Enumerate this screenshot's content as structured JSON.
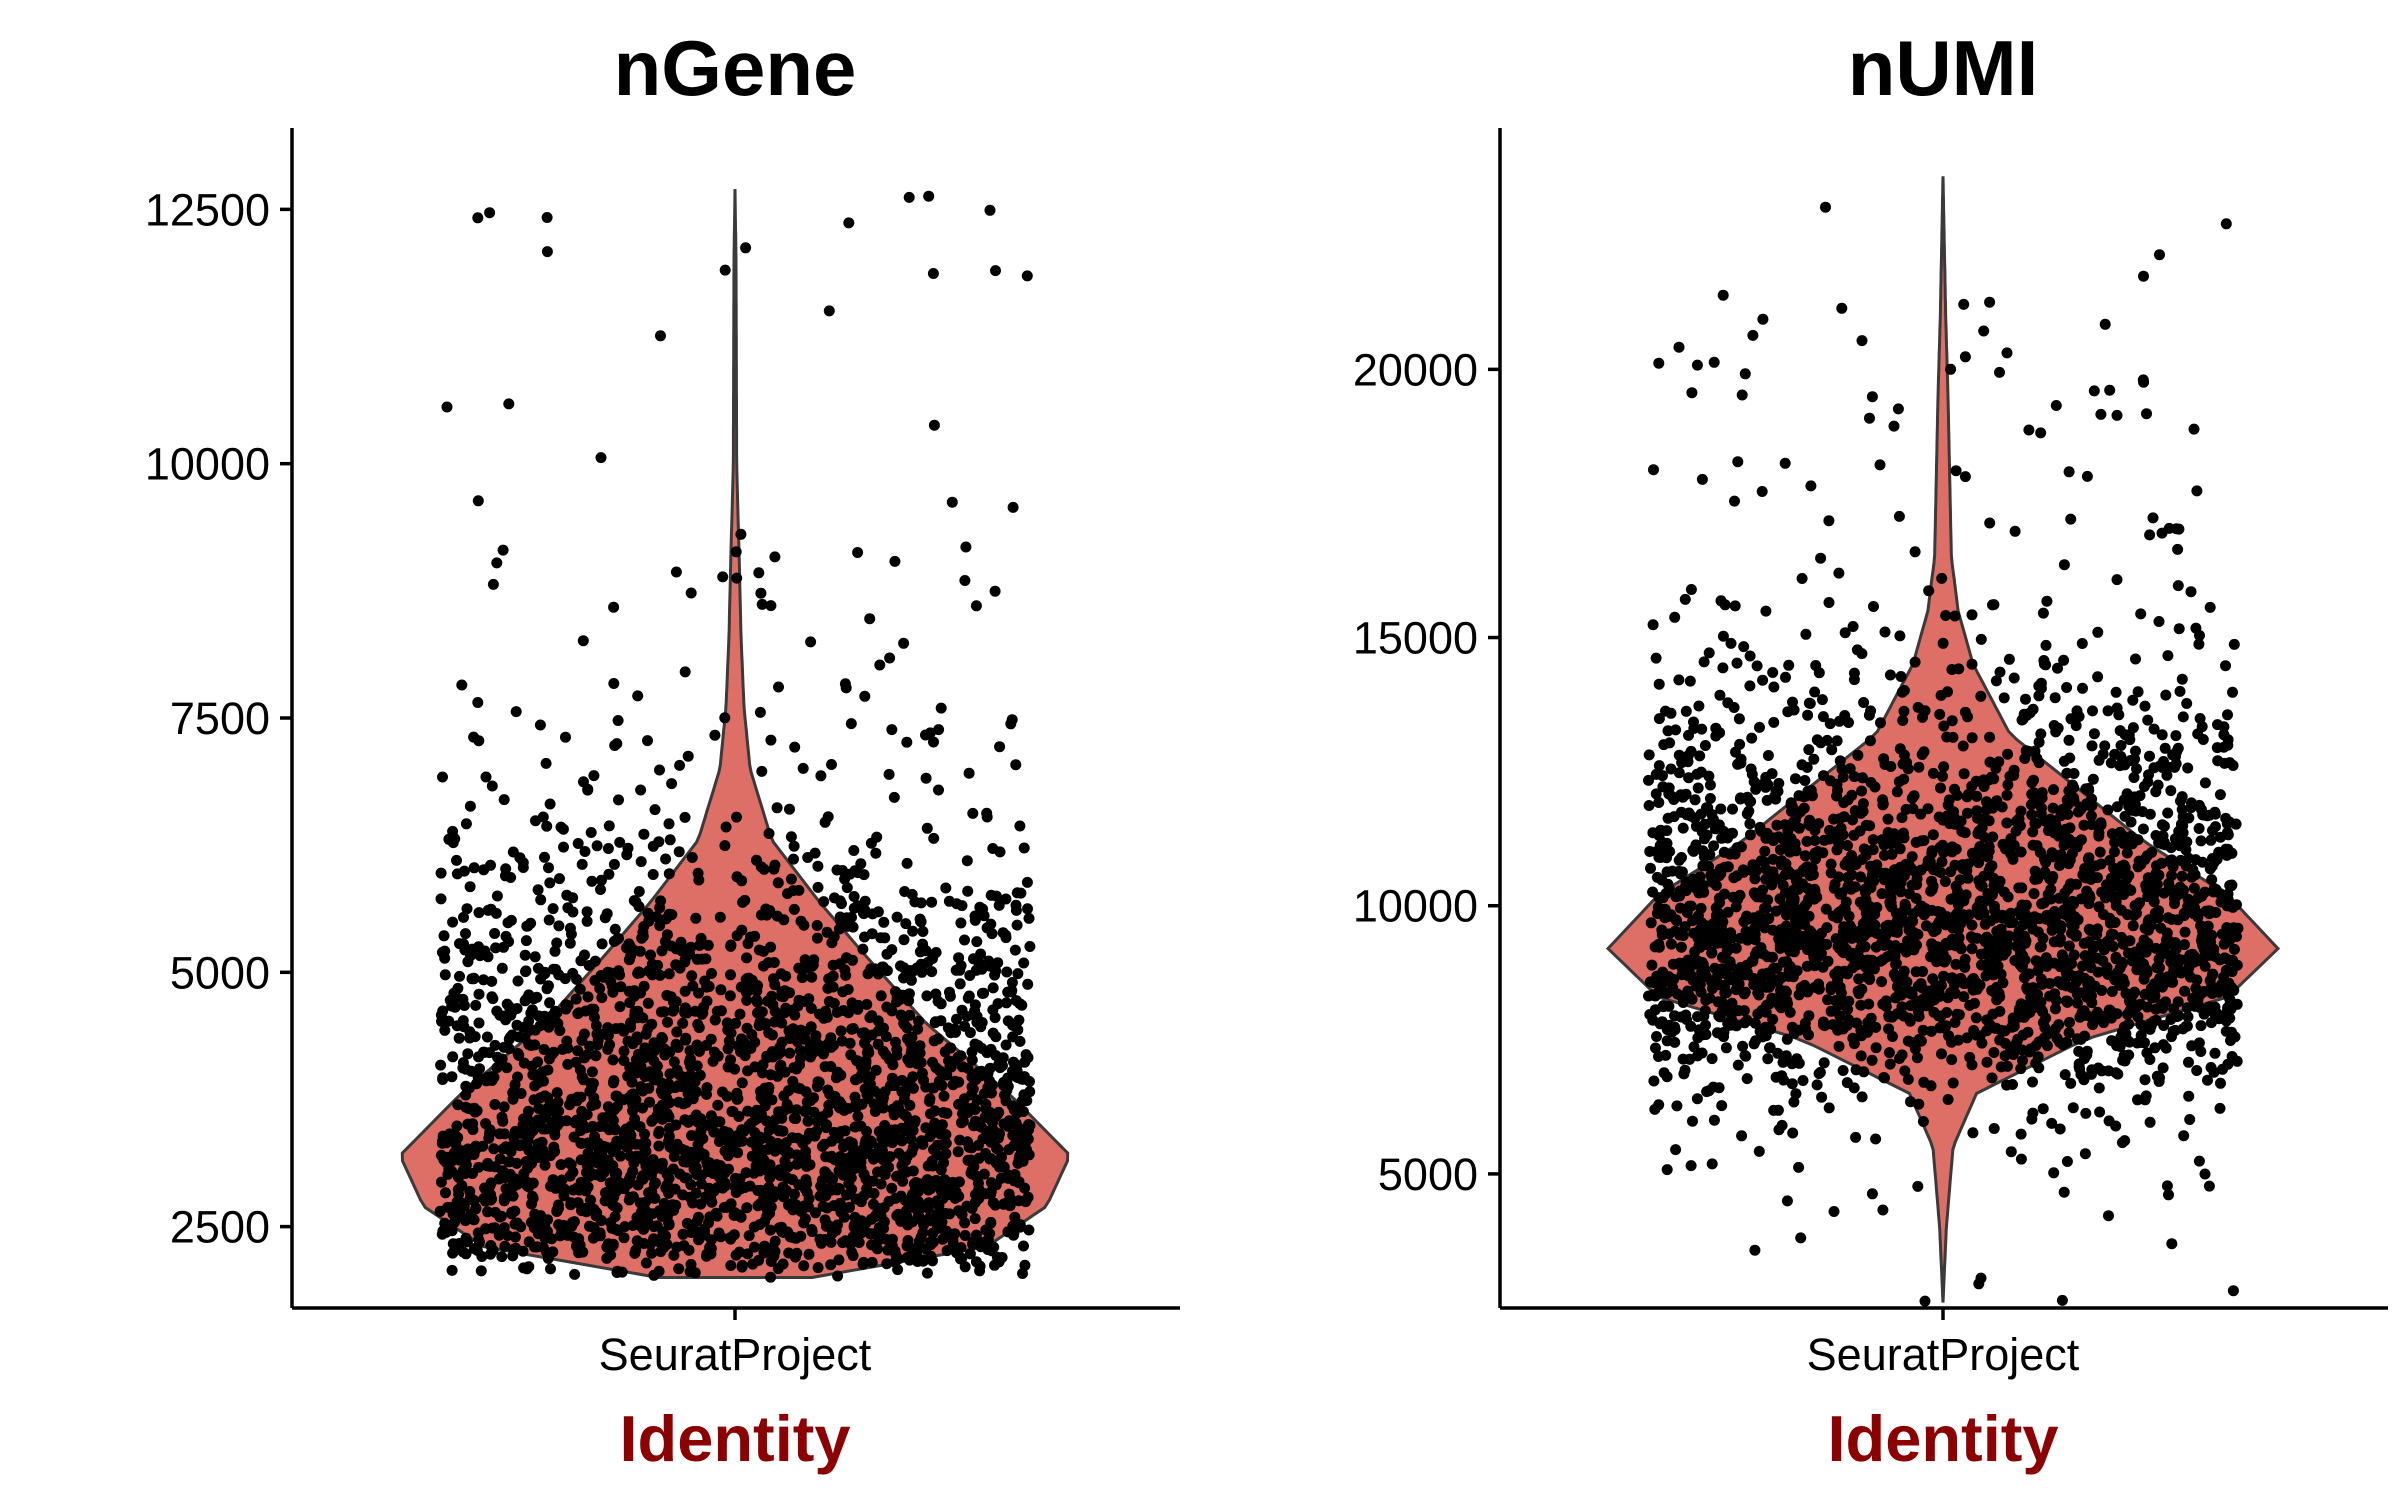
{
  "colors": {
    "violin_fill": "#DE6F66",
    "violin_stroke": "#3a3a3a",
    "point": "#000000",
    "axis_title": "#8B0000",
    "axis": "#000000"
  },
  "chart_data": [
    {
      "type": "violin",
      "title": "nGene",
      "xlabel": "Identity",
      "ylabel": "",
      "categories": [
        "SeuratProject"
      ],
      "ylim": [
        1700,
        13300
      ],
      "yticks": [
        2500,
        5000,
        7500,
        10000,
        12500
      ],
      "ytick_labels": [
        "2500",
        "5000",
        "7500",
        "10000",
        "12500"
      ],
      "grid": false,
      "legend": "none",
      "jitter_points": true,
      "n_points": 2700,
      "distribution": {
        "min": 2000,
        "max": 12700,
        "mode": 3200,
        "median": 3800
      },
      "density_profile": [
        [
          2000,
          0.23
        ],
        [
          2300,
          0.75
        ],
        [
          2700,
          0.93
        ],
        [
          3200,
          1.0
        ],
        [
          3800,
          0.82
        ],
        [
          4500,
          0.57
        ],
        [
          5200,
          0.38
        ],
        [
          5700,
          0.25
        ],
        [
          6300,
          0.11
        ],
        [
          7000,
          0.045
        ],
        [
          7600,
          0.027
        ],
        [
          8300,
          0.018
        ],
        [
          9000,
          0.013
        ],
        [
          10000,
          0.005
        ],
        [
          11000,
          0.004
        ],
        [
          12000,
          0.003
        ],
        [
          12700,
          0.0
        ]
      ]
    },
    {
      "type": "violin",
      "title": "nUMI",
      "xlabel": "Identity",
      "ylabel": "",
      "categories": [
        "SeuratProject"
      ],
      "ylim": [
        2500,
        24500
      ],
      "yticks": [
        5000,
        10000,
        15000,
        20000
      ],
      "ytick_labels": [
        "5000",
        "10000",
        "15000",
        "20000"
      ],
      "grid": false,
      "legend": "none",
      "jitter_points": true,
      "n_points": 2700,
      "distribution": {
        "min": 2600,
        "max": 23600,
        "mode": 9200,
        "median": 9600
      },
      "density_profile": [
        [
          2600,
          0.0
        ],
        [
          4000,
          0.01
        ],
        [
          5500,
          0.03
        ],
        [
          6500,
          0.1
        ],
        [
          7500,
          0.42
        ],
        [
          8300,
          0.85
        ],
        [
          9200,
          1.0
        ],
        [
          10200,
          0.85
        ],
        [
          11200,
          0.6
        ],
        [
          12200,
          0.4
        ],
        [
          13200,
          0.2
        ],
        [
          14500,
          0.09
        ],
        [
          15500,
          0.045
        ],
        [
          16500,
          0.025
        ],
        [
          18000,
          0.02
        ],
        [
          19500,
          0.015
        ],
        [
          21000,
          0.008
        ],
        [
          23600,
          0.0
        ]
      ]
    }
  ]
}
